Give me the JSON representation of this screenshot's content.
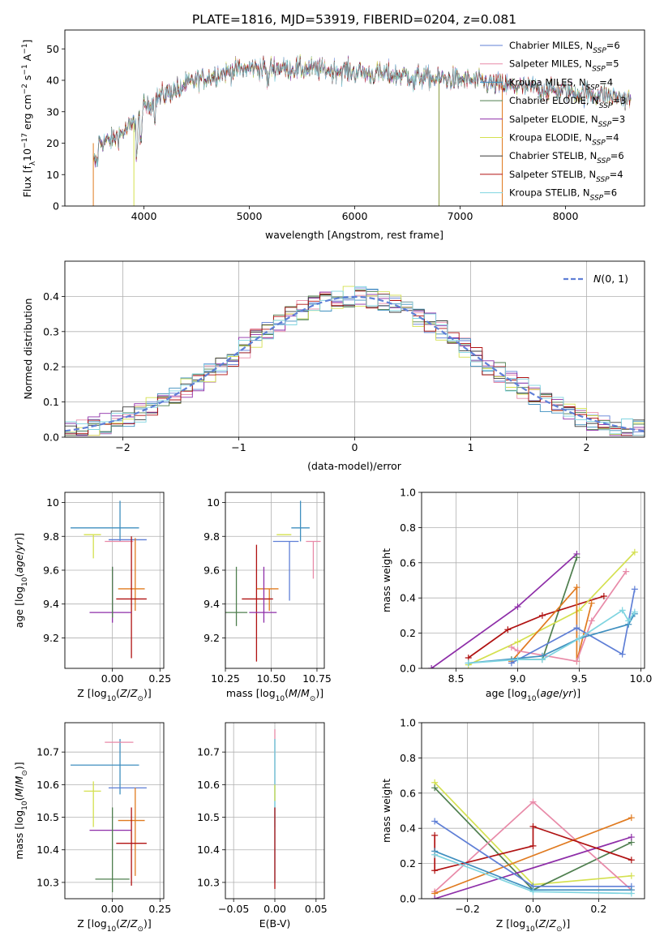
{
  "figure": {
    "title": "PLATE=1816, MJD=53919, FIBERID=0204, z=0.081"
  },
  "colors": [
    "#5f7fd6",
    "#e88aa8",
    "#3f8fbf",
    "#4f7f4f",
    "#8e2ea8",
    "#d4e04f",
    "#3b3b3b",
    "#b01212",
    "#7fd4e0",
    "#e07a1f"
  ],
  "legend": [
    {
      "label": "Chabrier MILES, N_SSP=6",
      "color": "#5f7fd6"
    },
    {
      "label": "Salpeter MILES, N_SSP=5",
      "color": "#e88aa8"
    },
    {
      "label": "Kroupa MILES, N_SSP=4",
      "color": "#3f8fbf"
    },
    {
      "label": "Chabrier ELODIE, N_SSP=3",
      "color": "#4f7f4f"
    },
    {
      "label": "Salpeter ELODIE, N_SSP=3",
      "color": "#8e2ea8"
    },
    {
      "label": "Kroupa ELODIE, N_SSP=4",
      "color": "#d4e04f"
    },
    {
      "label": "Chabrier STELIB, N_SSP=6",
      "color": "#3b3b3b"
    },
    {
      "label": "Salpeter STELIB, N_SSP=4",
      "color": "#b01212"
    },
    {
      "label": "Kroupa STELIB, N_SSP=6",
      "color": "#7fd4e0"
    }
  ],
  "chart_data": [
    {
      "id": "spectrum",
      "type": "line",
      "xlabel": "wavelength [Angstrom, rest frame]",
      "ylabel": "Flux [f_λ10^-17 erg cm^-2 s^-1 A^-1]",
      "xlim": [
        3250,
        8750
      ],
      "ylim": [
        0,
        56
      ],
      "xticks": [
        4000,
        5000,
        6000,
        7000,
        8000
      ],
      "yticks": [
        0,
        10,
        20,
        30,
        40,
        50
      ],
      "grid": false,
      "continuum": [
        [
          3520,
          20
        ],
        [
          3700,
          21
        ],
        [
          3900,
          26
        ],
        [
          4000,
          31
        ],
        [
          4150,
          35
        ],
        [
          4300,
          37
        ],
        [
          4500,
          40
        ],
        [
          4700,
          42
        ],
        [
          4900,
          43.5
        ],
        [
          5100,
          44
        ],
        [
          5300,
          44
        ],
        [
          5600,
          43.5
        ],
        [
          5900,
          43
        ],
        [
          6200,
          42
        ],
        [
          6500,
          41.5
        ],
        [
          6800,
          40.5
        ],
        [
          7100,
          40
        ],
        [
          7400,
          38.5
        ],
        [
          7700,
          37.5
        ],
        [
          8000,
          36.5
        ],
        [
          8300,
          35.5
        ],
        [
          8600,
          34
        ]
      ],
      "spikes": [
        {
          "x": 3520,
          "color": "#e07a1f"
        },
        {
          "x": 3905,
          "color": "#d4e04f"
        },
        {
          "x": 6800,
          "color": "#8a9a3f"
        },
        {
          "x": 7400,
          "color": "#e07a1f"
        }
      ]
    },
    {
      "id": "residuals",
      "type": "step",
      "xlabel": "(data-model)/error",
      "ylabel": "Normed distribution",
      "xlim": [
        -2.5,
        2.5
      ],
      "ylim": [
        0,
        0.5
      ],
      "xticks": [
        -2,
        -1,
        0,
        1,
        2
      ],
      "yticks": [
        0.0,
        0.1,
        0.2,
        0.3,
        0.4
      ],
      "grid": true,
      "bin_width": 0.1,
      "gaussian_label": "N(0,1)"
    },
    {
      "id": "age-vs-Z",
      "type": "errorbar",
      "xlabel": "Z [log10(Z/Z_sun)]",
      "ylabel": "age [log10(age/yr)]",
      "xlim": [
        -0.25,
        0.27
      ],
      "ylim": [
        9.02,
        10.06
      ],
      "xticks": [
        -0.0,
        0.25
      ],
      "xticklabels": [
        "0.00",
        "0.25"
      ],
      "yticks": [
        9.2,
        9.4,
        9.6,
        9.8,
        10.0
      ],
      "grid": true,
      "points": [
        {
          "x": 0.04,
          "y": 9.85,
          "xerr": [
            0.26,
            0.1
          ],
          "yerr": [
            0.08,
            0.16
          ],
          "color": "#3f8fbf"
        },
        {
          "x": 0.04,
          "y": 9.78,
          "xerr": [
            0.06,
            0.14
          ],
          "yerr": [
            0.0,
            0.0
          ],
          "color": "#5f7fd6"
        },
        {
          "x": -0.1,
          "y": 9.81,
          "xerr": [
            0.05,
            0.04
          ],
          "yerr": [
            0.14,
            0.0
          ],
          "color": "#d4e04f"
        },
        {
          "x": 0.03,
          "y": 9.77,
          "xerr": [
            0.07,
            0.08
          ],
          "yerr": [
            0.0,
            0.0
          ],
          "color": "#e88aa8"
        },
        {
          "x": 0.12,
          "y": 9.49,
          "xerr": [
            0.09,
            0.05
          ],
          "yerr": [
            0.13,
            0.3
          ],
          "color": "#e07a1f"
        },
        {
          "x": 0.1,
          "y": 9.43,
          "xerr": [
            0.08,
            0.08
          ],
          "yerr": [
            0.35,
            0.37
          ],
          "color": "#b01212"
        },
        {
          "x": 0.0,
          "y": 9.35,
          "xerr": [
            0.12,
            0.1
          ],
          "yerr": [
            0.06,
            0.27
          ],
          "color": "#8e2ea8"
        },
        {
          "x": 0.0,
          "y": 9.4,
          "xerr": [
            0.0,
            0.0
          ],
          "yerr": [
            0.08,
            0.22
          ],
          "color": "#4f7f4f"
        }
      ]
    },
    {
      "id": "age-vs-mass",
      "type": "errorbar",
      "xlabel": "mass [log10(M/M_sun)]",
      "ylabel": "",
      "xlim": [
        10.25,
        10.79
      ],
      "ylim": [
        9.02,
        10.06
      ],
      "xticks": [
        10.25,
        10.5,
        10.75
      ],
      "xticklabels": [
        "10.25",
        "10.50",
        "10.75"
      ],
      "yticks": [
        9.2,
        9.4,
        9.6,
        9.8,
        10.0
      ],
      "grid": true,
      "points": [
        {
          "x": 10.66,
          "y": 9.85,
          "xerr": [
            0.05,
            0.05
          ],
          "yerr": [
            0.08,
            0.16
          ],
          "color": "#3f8fbf"
        },
        {
          "x": 10.6,
          "y": 9.77,
          "xerr": [
            0.09,
            0.05
          ],
          "yerr": [
            0.35,
            0.0
          ],
          "color": "#5f7fd6"
        },
        {
          "x": 10.58,
          "y": 9.81,
          "xerr": [
            0.05,
            0.03
          ],
          "yerr": [
            0.0,
            0.0
          ],
          "color": "#d4e04f"
        },
        {
          "x": 10.73,
          "y": 9.77,
          "xerr": [
            0.04,
            0.04
          ],
          "yerr": [
            0.22,
            0.0
          ],
          "color": "#e88aa8"
        },
        {
          "x": 10.49,
          "y": 9.49,
          "xerr": [
            0.07,
            0.05
          ],
          "yerr": [
            0.13,
            0.0
          ],
          "color": "#e07a1f"
        },
        {
          "x": 10.42,
          "y": 9.43,
          "xerr": [
            0.08,
            0.09
          ],
          "yerr": [
            0.37,
            0.32
          ],
          "color": "#b01212"
        },
        {
          "x": 10.46,
          "y": 9.35,
          "xerr": [
            0.08,
            0.07
          ],
          "yerr": [
            0.06,
            0.27
          ],
          "color": "#8e2ea8"
        },
        {
          "x": 10.31,
          "y": 9.35,
          "xerr": [
            0.08,
            0.06
          ],
          "yerr": [
            0.08,
            0.27
          ],
          "color": "#4f7f4f"
        }
      ]
    },
    {
      "id": "weight-vs-age",
      "type": "line",
      "xlabel": "age [log10(age/yr)]",
      "ylabel": "mass weight",
      "xlim": [
        8.22,
        10.03
      ],
      "ylim": [
        0,
        1.0
      ],
      "xticks": [
        8.5,
        9.0,
        9.5,
        10.0
      ],
      "xticklabels": [
        "8.5",
        "9.0",
        "9.5",
        "10.0"
      ],
      "yticks": [
        0.0,
        0.2,
        0.4,
        0.6,
        0.8,
        1.0
      ],
      "grid": true,
      "series": [
        {
          "color": "#8e2ea8",
          "points": [
            [
              8.3,
              0.0
            ],
            [
              9.0,
              0.35
            ],
            [
              9.48,
              0.65
            ]
          ]
        },
        {
          "color": "#4f7f4f",
          "points": [
            [
              8.95,
              0.05
            ],
            [
              9.2,
              0.05
            ],
            [
              9.48,
              0.63
            ]
          ]
        },
        {
          "color": "#b01212",
          "points": [
            [
              8.6,
              0.06
            ],
            [
              8.92,
              0.22
            ],
            [
              9.2,
              0.3
            ],
            [
              9.7,
              0.41
            ]
          ]
        },
        {
          "color": "#d4e04f",
          "points": [
            [
              8.6,
              0.02
            ],
            [
              9.0,
              0.15
            ],
            [
              9.5,
              0.33
            ],
            [
              9.95,
              0.66
            ]
          ]
        },
        {
          "color": "#e07a1f",
          "points": [
            [
              8.95,
              0.04
            ],
            [
              9.48,
              0.46
            ],
            [
              9.48,
              0.04
            ],
            [
              9.6,
              0.37
            ]
          ]
        },
        {
          "color": "#e88aa8",
          "points": [
            [
              8.95,
              0.12
            ],
            [
              9.0,
              0.1
            ],
            [
              9.48,
              0.04
            ],
            [
              9.6,
              0.27
            ],
            [
              9.88,
              0.55
            ]
          ]
        },
        {
          "color": "#5f7fd6",
          "points": [
            [
              8.95,
              0.03
            ],
            [
              9.48,
              0.23
            ],
            [
              9.85,
              0.08
            ],
            [
              9.95,
              0.45
            ]
          ]
        },
        {
          "color": "#3f8fbf",
          "points": [
            [
              8.6,
              0.03
            ],
            [
              9.2,
              0.07
            ],
            [
              9.5,
              0.17
            ],
            [
              9.9,
              0.25
            ],
            [
              9.95,
              0.31
            ]
          ]
        },
        {
          "color": "#7fd4e0",
          "points": [
            [
              8.6,
              0.03
            ],
            [
              9.0,
              0.05
            ],
            [
              9.2,
              0.05
            ],
            [
              9.5,
              0.17
            ],
            [
              9.85,
              0.33
            ],
            [
              9.9,
              0.27
            ],
            [
              9.95,
              0.32
            ]
          ]
        }
      ]
    },
    {
      "id": "mass-vs-Z",
      "type": "errorbar",
      "xlabel": "Z [log10(Z/Z_sun)]",
      "ylabel": "mass [log10(M/M_sun)]",
      "xlim": [
        -0.25,
        0.27
      ],
      "ylim": [
        10.25,
        10.79
      ],
      "xticks": [
        0.0,
        0.25
      ],
      "xticklabels": [
        "0.00",
        "0.25"
      ],
      "yticks": [
        10.3,
        10.4,
        10.5,
        10.6,
        10.7
      ],
      "grid": true,
      "points": [
        {
          "x": 0.04,
          "y": 10.66,
          "xerr": [
            0.26,
            0.1
          ],
          "yerr": [
            0.09,
            0.08
          ],
          "color": "#3f8fbf"
        },
        {
          "x": 0.04,
          "y": 10.59,
          "xerr": [
            0.06,
            0.14
          ],
          "yerr": [
            0.0,
            0.0
          ],
          "color": "#5f7fd6"
        },
        {
          "x": -0.1,
          "y": 10.58,
          "xerr": [
            0.05,
            0.04
          ],
          "yerr": [
            0.11,
            0.03
          ],
          "color": "#d4e04f"
        },
        {
          "x": 0.03,
          "y": 10.73,
          "xerr": [
            0.07,
            0.08
          ],
          "yerr": [
            0.0,
            0.0
          ],
          "color": "#e88aa8"
        },
        {
          "x": 0.12,
          "y": 10.49,
          "xerr": [
            0.09,
            0.05
          ],
          "yerr": [
            0.17,
            0.1
          ],
          "color": "#e07a1f"
        },
        {
          "x": 0.1,
          "y": 10.42,
          "xerr": [
            0.08,
            0.08
          ],
          "yerr": [
            0.13,
            0.11
          ],
          "color": "#b01212"
        },
        {
          "x": 0.0,
          "y": 10.46,
          "xerr": [
            0.12,
            0.1
          ],
          "yerr": [
            0.0,
            0.0
          ],
          "color": "#8e2ea8"
        },
        {
          "x": 0.0,
          "y": 10.31,
          "xerr": [
            0.09,
            0.09
          ],
          "yerr": [
            0.04,
            0.22
          ],
          "color": "#4f7f4f"
        }
      ]
    },
    {
      "id": "mass-vs-EBV",
      "type": "errorbar",
      "xlabel": "E(B-V)",
      "ylabel": "",
      "xlim": [
        -0.06,
        0.06
      ],
      "ylim": [
        10.25,
        10.79
      ],
      "xticks": [
        -0.05,
        0.0,
        0.05
      ],
      "xticklabels": [
        "−0.05",
        "0.00",
        "0.05"
      ],
      "yticks": [
        10.3,
        10.4,
        10.5,
        10.6,
        10.7
      ],
      "grid": true,
      "points": [
        {
          "x": 0.0,
          "y": 10.6,
          "xerr": [
            0,
            0
          ],
          "yerr": [
            0.0,
            0.17
          ],
          "color": "#e88aa8"
        },
        {
          "x": 0.0,
          "y": 10.6,
          "xerr": [
            0,
            0
          ],
          "yerr": [
            0.3,
            0.14
          ],
          "color": "#3f8fbf"
        },
        {
          "x": 0.0,
          "y": 10.5,
          "xerr": [
            0,
            0
          ],
          "yerr": [
            0.03,
            0.24
          ],
          "color": "#7fd4e0"
        },
        {
          "x": 0.0,
          "y": 10.4,
          "xerr": [
            0,
            0
          ],
          "yerr": [
            0.12,
            0.13
          ],
          "color": "#b01212"
        },
        {
          "x": 0.0,
          "y": 10.55,
          "xerr": [
            0,
            0
          ],
          "yerr": [
            0.0,
            0.05
          ],
          "color": "#d4e04f"
        }
      ]
    },
    {
      "id": "weight-vs-Z",
      "type": "line",
      "xlabel": "Z [log10(Z/Z_sun)]",
      "ylabel": "mass weight",
      "xlim": [
        -0.34,
        0.34
      ],
      "ylim": [
        0,
        1.0
      ],
      "xticks": [
        -0.2,
        0.0,
        0.2
      ],
      "xticklabels": [
        "−0.2",
        "0.0",
        "0.2"
      ],
      "yticks": [
        0.0,
        0.2,
        0.4,
        0.6,
        0.8,
        1.0
      ],
      "grid": true,
      "series": [
        {
          "color": "#d4e04f",
          "points": [
            [
              -0.3,
              0.66
            ],
            [
              0.0,
              0.08
            ],
            [
              0.3,
              0.13
            ]
          ]
        },
        {
          "color": "#4f7f4f",
          "points": [
            [
              -0.3,
              0.63
            ],
            [
              0.0,
              0.05
            ],
            [
              0.3,
              0.32
            ]
          ]
        },
        {
          "color": "#e88aa8",
          "points": [
            [
              -0.3,
              0.04
            ],
            [
              0.0,
              0.55
            ],
            [
              0.3,
              0.05
            ]
          ]
        },
        {
          "color": "#e07a1f",
          "points": [
            [
              -0.3,
              0.03
            ],
            [
              0.3,
              0.46
            ]
          ]
        },
        {
          "color": "#8e2ea8",
          "points": [
            [
              -0.3,
              0.0
            ],
            [
              0.3,
              0.35
            ]
          ]
        },
        {
          "color": "#b01212",
          "points": [
            [
              -0.3,
              0.36
            ],
            [
              -0.3,
              0.16
            ],
            [
              0.0,
              0.3
            ],
            [
              0.0,
              0.41
            ],
            [
              0.3,
              0.22
            ]
          ]
        },
        {
          "color": "#5f7fd6",
          "points": [
            [
              -0.3,
              0.44
            ],
            [
              0.0,
              0.07
            ],
            [
              0.3,
              0.07
            ]
          ]
        },
        {
          "color": "#3f8fbf",
          "points": [
            [
              -0.3,
              0.27
            ],
            [
              0.0,
              0.05
            ],
            [
              0.3,
              0.05
            ]
          ]
        },
        {
          "color": "#7fd4e0",
          "points": [
            [
              -0.3,
              0.25
            ],
            [
              0.0,
              0.04
            ],
            [
              0.3,
              0.03
            ]
          ]
        }
      ]
    }
  ]
}
